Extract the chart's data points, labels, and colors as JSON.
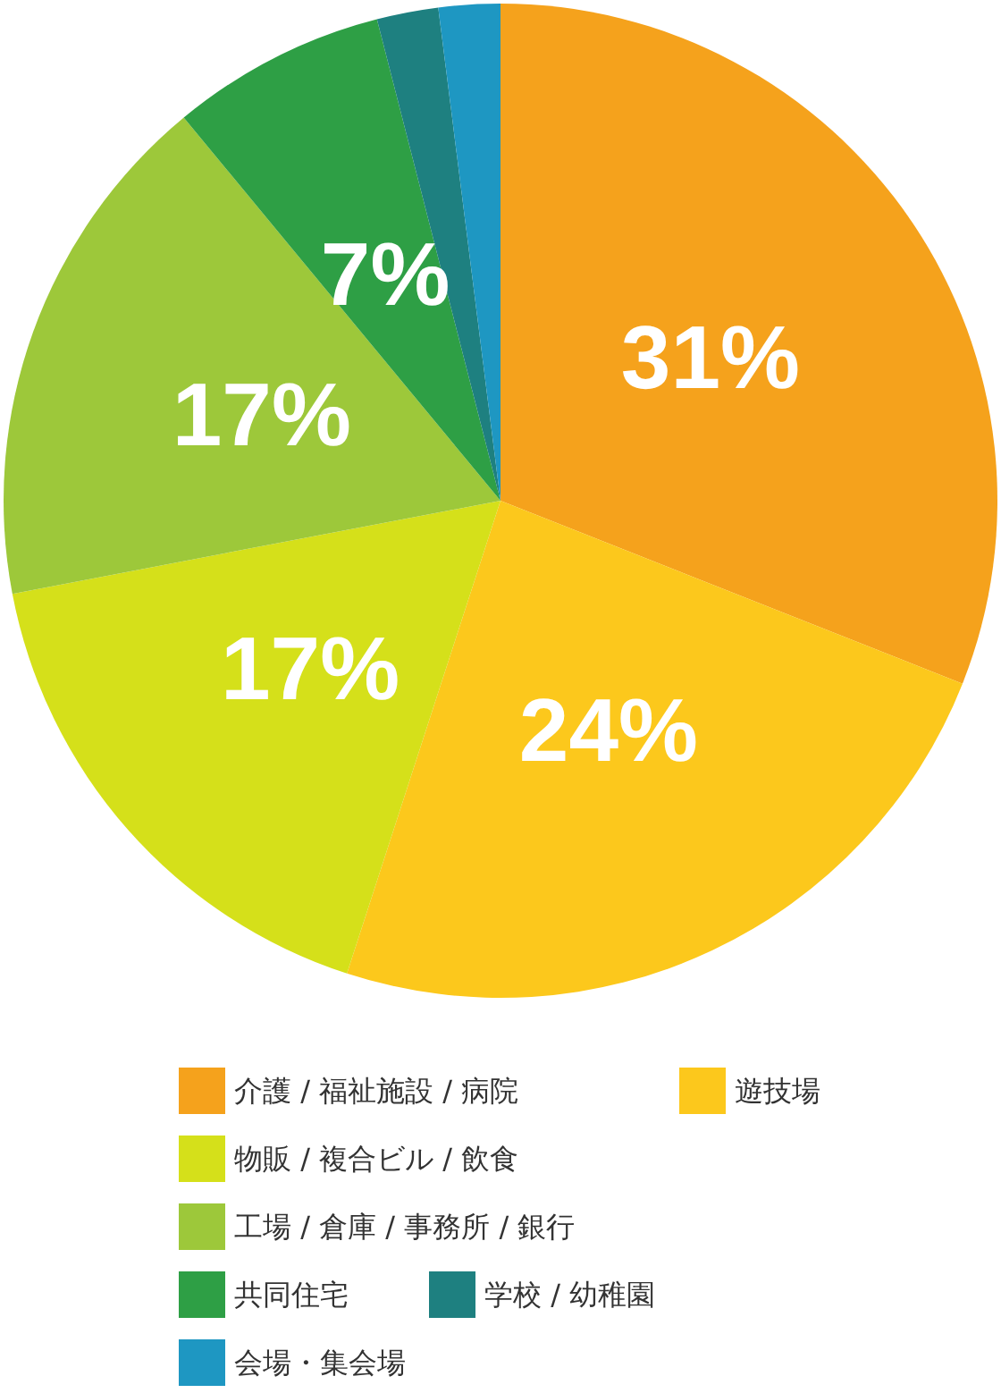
{
  "chart_data": {
    "type": "pie",
    "categories": [
      "介護 / 福祉施設 / 病院",
      "遊技場",
      "物販 / 複合ビル / 飲食",
      "工場 / 倉庫 / 事務所 / 銀行",
      "共同住宅",
      "学校 / 幼稚園",
      "会場・集会場"
    ],
    "values": [
      31,
      24,
      17,
      17,
      7,
      2,
      2
    ],
    "colors": [
      "#f5a21c",
      "#fcc81c",
      "#d5e01a",
      "#9dc83a",
      "#2e9f45",
      "#1e8080",
      "#1e97c2"
    ],
    "value_labels": [
      "31%",
      "24%",
      "17%",
      "17%",
      "7%",
      null,
      null
    ],
    "legend": "bottom"
  }
}
